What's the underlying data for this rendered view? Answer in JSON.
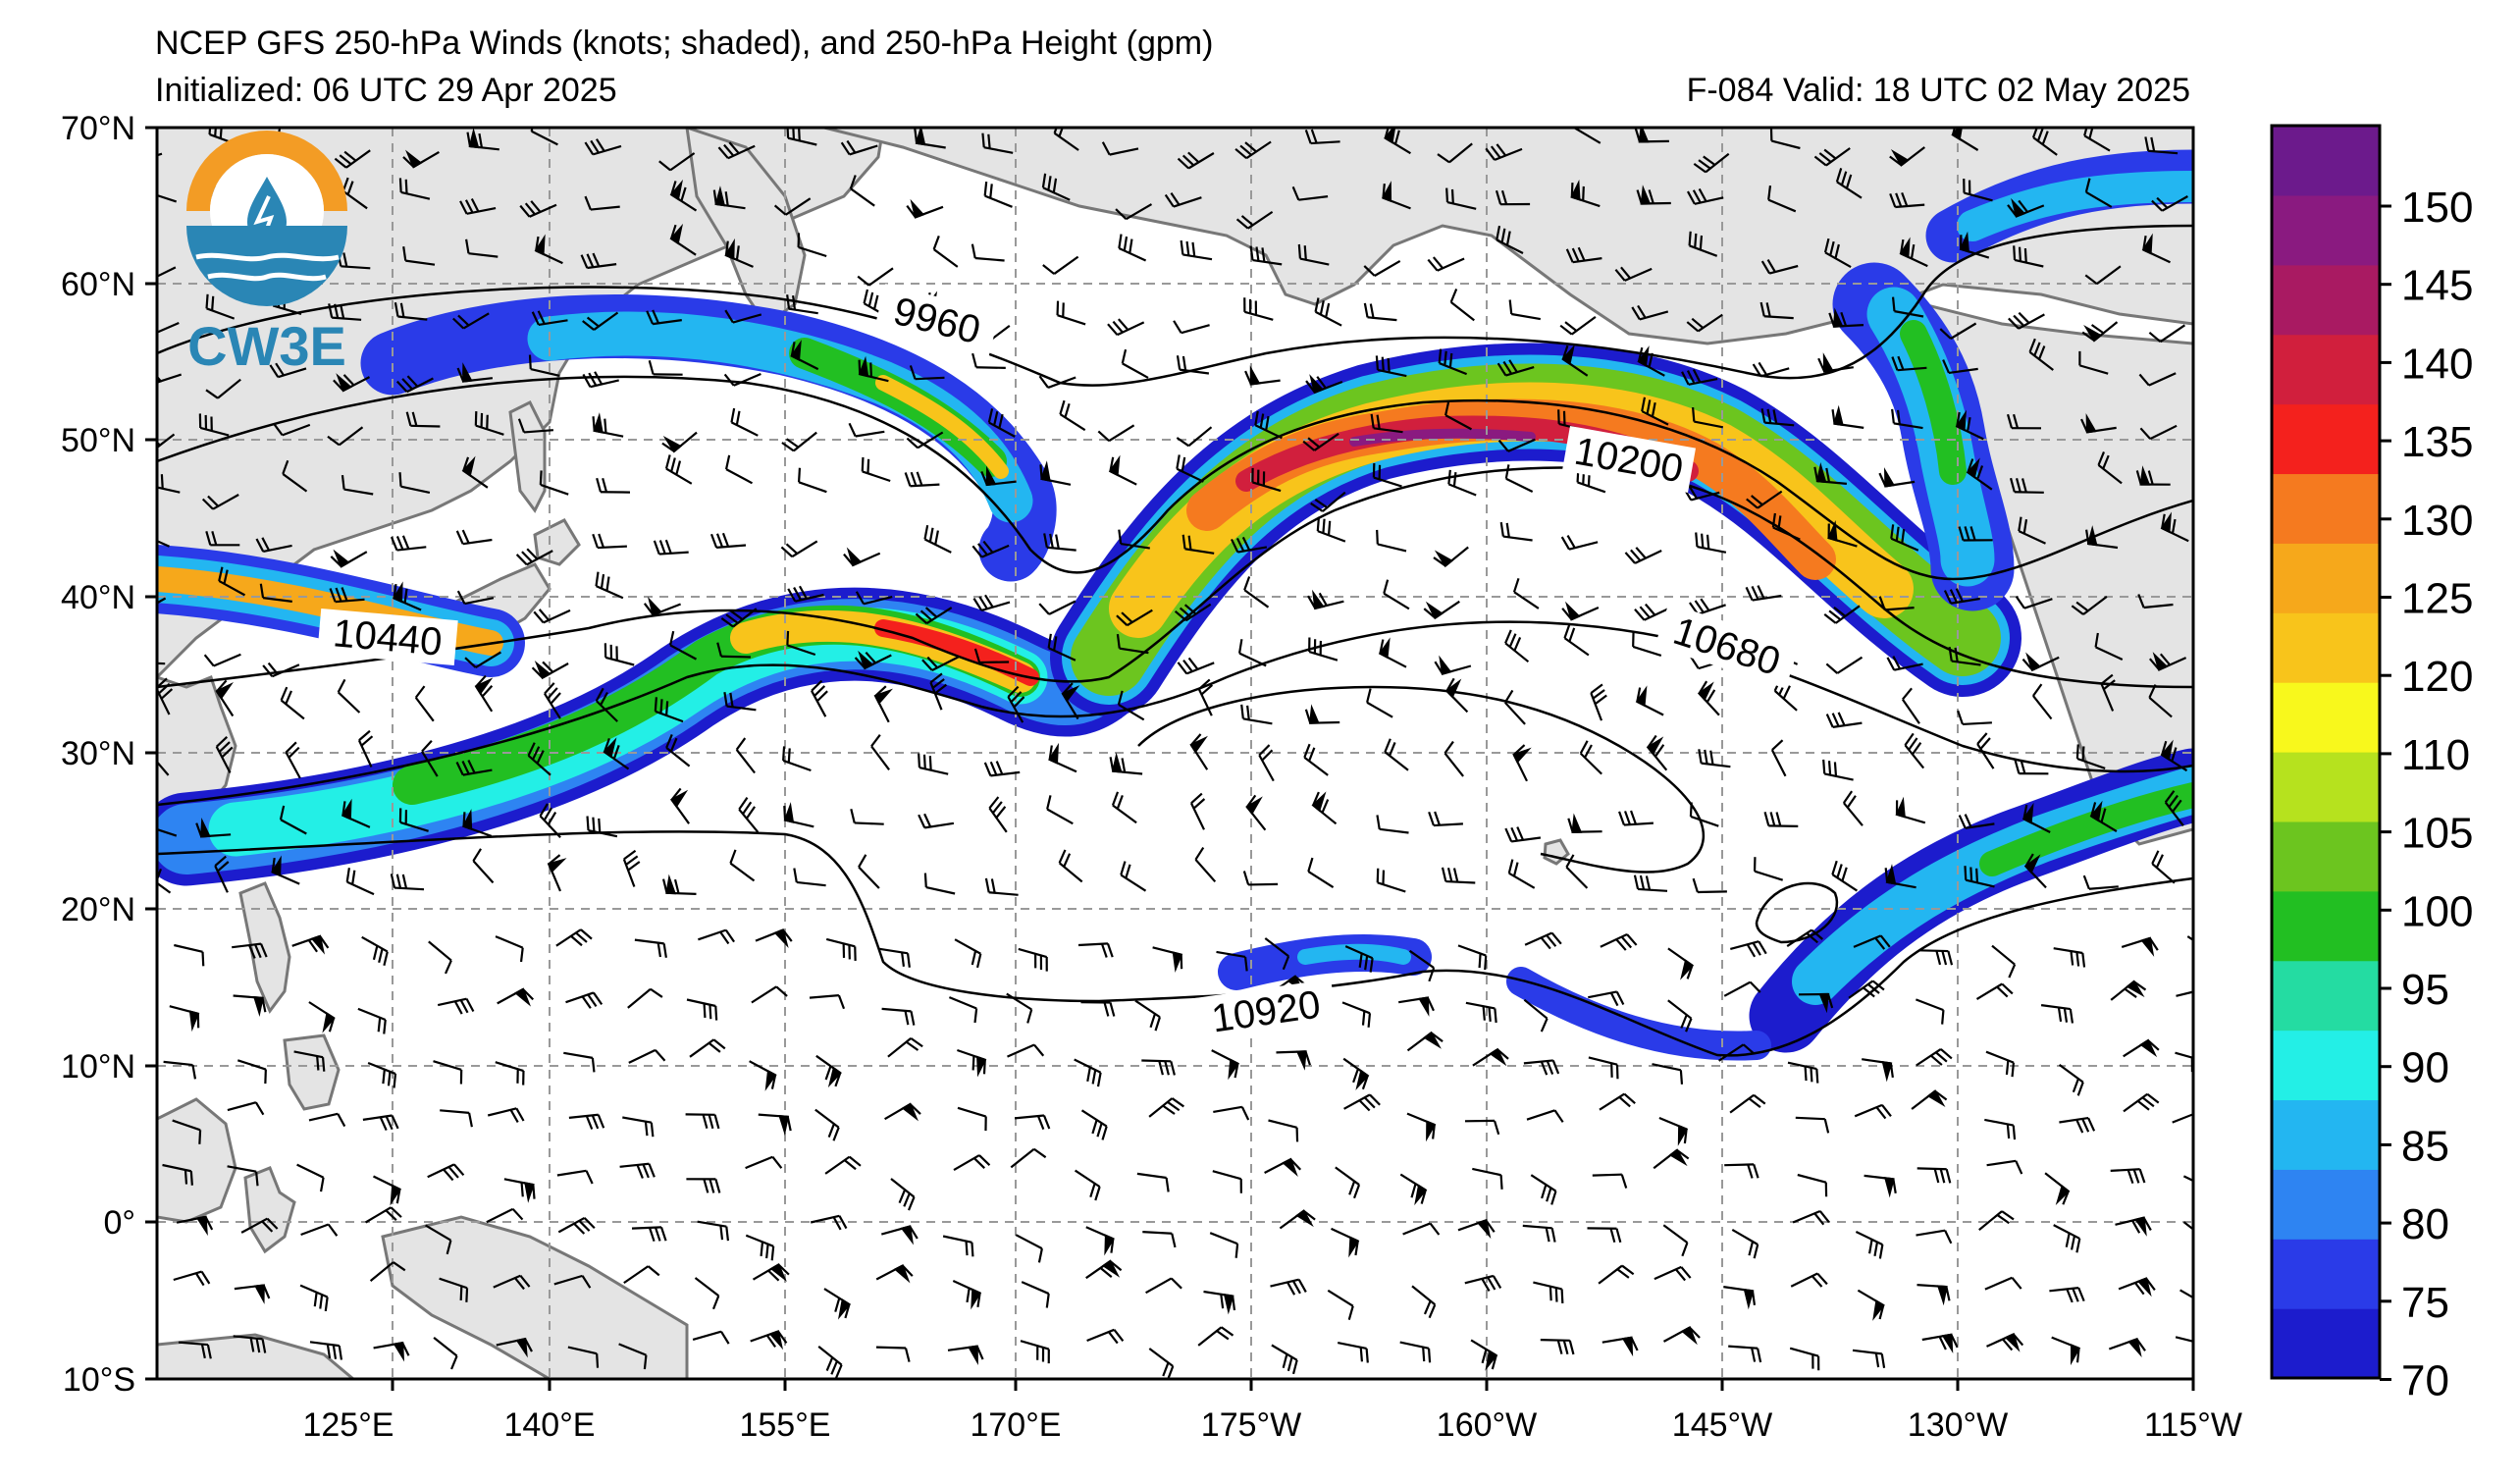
{
  "header": {
    "title": "NCEP GFS 250-hPa Winds (knots; shaded), and 250-hPa Height (gpm)",
    "initialized": "Initialized: 06 UTC 29 Apr 2025",
    "valid": "F-084  Valid: 18 UTC 02 May 2025"
  },
  "logo": {
    "text": "CW3E",
    "colors": {
      "orange": "#F39C25",
      "blue": "#2A86B5"
    }
  },
  "map": {
    "extent": {
      "lon_west": 110,
      "lon_east": 245,
      "lat_south": -10,
      "lat_north": 70
    },
    "lat_labels": [
      "70°N",
      "60°N",
      "50°N",
      "40°N",
      "30°N",
      "20°N",
      "10°N",
      "0°",
      "10°S"
    ],
    "lon_labels": [
      "125°E",
      "140°E",
      "155°E",
      "170°E",
      "175°W",
      "160°W",
      "145°W",
      "130°W",
      "115°W"
    ],
    "contour_labels": [
      "9960",
      "10200",
      "10440",
      "10680",
      "10920"
    ],
    "colors": {
      "land": "#e4e4e4",
      "coast": "#777777"
    }
  },
  "colorbar": {
    "labels": [
      "150",
      "145",
      "140",
      "135",
      "130",
      "125",
      "120",
      "110",
      "105",
      "100",
      "95",
      "90",
      "85",
      "80",
      "75",
      "70"
    ],
    "colors": [
      "#1c1ccd",
      "#2a3be8",
      "#2e84f2",
      "#23b6f1",
      "#23efe6",
      "#24dca2",
      "#22bf22",
      "#6cc51f",
      "#b6e21e",
      "#f8f81c",
      "#f8c41b",
      "#f6a81b",
      "#f57a1f",
      "#f4211d",
      "#d11f3d",
      "#a91a62",
      "#8a1a80",
      "#6c1a8c"
    ]
  }
}
